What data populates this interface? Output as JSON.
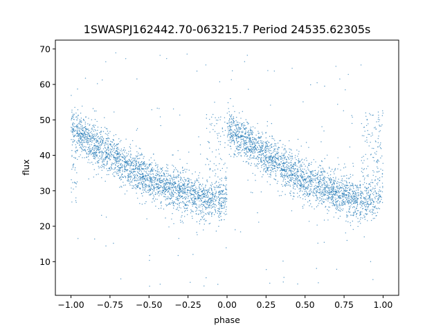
{
  "chart_data": {
    "type": "scatter",
    "title": "1SWASPJ162442.70-063215.7 Period 24535.62305s",
    "xlabel": "phase",
    "ylabel": "flux",
    "xlim": [
      -1.1,
      1.1
    ],
    "ylim": [
      0.5,
      72.5
    ],
    "xticks": [
      -1.0,
      -0.75,
      -0.5,
      -0.25,
      0.0,
      0.25,
      0.5,
      0.75,
      1.0
    ],
    "xtick_labels": [
      "−1.00",
      "−0.75",
      "−0.50",
      "−0.25",
      "0.00",
      "0.25",
      "0.50",
      "0.75",
      "1.00"
    ],
    "yticks": [
      10,
      20,
      30,
      40,
      50,
      60,
      70
    ],
    "ytick_labels": [
      "10",
      "20",
      "30",
      "40",
      "50",
      "60",
      "70"
    ],
    "grid": false,
    "marker_color": "#1f77b4",
    "series": [
      {
        "description_points": [
          [
            -1.0,
            48
          ],
          [
            -0.95,
            47
          ],
          [
            -0.9,
            45
          ],
          [
            -0.85,
            43
          ],
          [
            -0.8,
            41
          ],
          [
            -0.75,
            39
          ],
          [
            -0.7,
            37
          ],
          [
            -0.65,
            35.5
          ],
          [
            -0.6,
            34
          ],
          [
            -0.55,
            33
          ],
          [
            -0.5,
            32
          ],
          [
            -0.45,
            31
          ],
          [
            -0.4,
            30
          ],
          [
            -0.35,
            29.3
          ],
          [
            -0.3,
            28.7
          ],
          [
            -0.25,
            28.2
          ],
          [
            -0.2,
            27.8
          ],
          [
            -0.15,
            27.5
          ],
          [
            -0.1,
            27.2
          ],
          [
            -0.05,
            27
          ],
          [
            0.0,
            48
          ],
          [
            0.05,
            47
          ],
          [
            0.1,
            45
          ],
          [
            0.15,
            43
          ],
          [
            0.2,
            41
          ],
          [
            0.25,
            39
          ],
          [
            0.3,
            37
          ],
          [
            0.35,
            35.5
          ],
          [
            0.4,
            34
          ],
          [
            0.45,
            33
          ],
          [
            0.5,
            32
          ],
          [
            0.55,
            31
          ],
          [
            0.6,
            30
          ],
          [
            0.65,
            29.3
          ],
          [
            0.7,
            28.7
          ],
          [
            0.75,
            28.2
          ],
          [
            0.8,
            27.8
          ],
          [
            0.85,
            27.5
          ],
          [
            0.9,
            27.2
          ],
          [
            0.95,
            27
          ],
          [
            1.0,
            48
          ]
        ]
      }
    ]
  }
}
